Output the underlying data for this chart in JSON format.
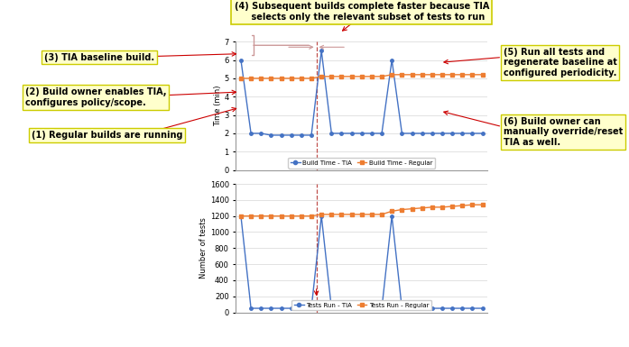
{
  "top_chart": {
    "x": [
      1,
      2,
      3,
      4,
      5,
      6,
      7,
      8,
      9,
      10,
      11,
      12,
      13,
      14,
      15,
      16,
      17,
      18,
      19,
      20,
      21,
      22,
      23,
      24,
      25
    ],
    "tia": [
      6.0,
      2.0,
      2.0,
      1.9,
      1.9,
      1.9,
      1.9,
      1.9,
      6.5,
      2.0,
      2.0,
      2.0,
      2.0,
      2.0,
      2.0,
      6.0,
      2.0,
      2.0,
      2.0,
      2.0,
      2.0,
      2.0,
      2.0,
      2.0,
      2.0
    ],
    "regular": [
      5.0,
      5.0,
      5.0,
      5.0,
      5.0,
      5.0,
      5.0,
      5.0,
      5.1,
      5.1,
      5.1,
      5.1,
      5.1,
      5.1,
      5.1,
      5.2,
      5.2,
      5.2,
      5.2,
      5.2,
      5.2,
      5.2,
      5.2,
      5.2,
      5.2
    ],
    "ylabel": "Time (min)",
    "ylim": [
      0,
      7
    ],
    "yticks": [
      0,
      1,
      2,
      3,
      4,
      5,
      6,
      7
    ],
    "legend_tia": "Build Time - TIA",
    "legend_regular": "Build Time - Regular",
    "vline_x": 8.5
  },
  "bottom_chart": {
    "x": [
      1,
      2,
      3,
      4,
      5,
      6,
      7,
      8,
      9,
      10,
      11,
      12,
      13,
      14,
      15,
      16,
      17,
      18,
      19,
      20,
      21,
      22,
      23,
      24,
      25
    ],
    "tia": [
      1200,
      50,
      50,
      50,
      50,
      50,
      50,
      50,
      1200,
      50,
      50,
      50,
      50,
      50,
      50,
      1200,
      50,
      50,
      50,
      50,
      50,
      50,
      50,
      50,
      50
    ],
    "regular": [
      1200,
      1200,
      1200,
      1200,
      1200,
      1200,
      1200,
      1200,
      1220,
      1220,
      1220,
      1220,
      1220,
      1220,
      1220,
      1260,
      1280,
      1290,
      1300,
      1310,
      1310,
      1320,
      1330,
      1340,
      1340
    ],
    "ylabel": "Number of tests",
    "ylim": [
      0,
      1600
    ],
    "yticks": [
      0,
      200,
      400,
      600,
      800,
      1000,
      1200,
      1400,
      1600
    ],
    "legend_tia": "Tests Run - TIA",
    "legend_regular": "Tests Run - Regular",
    "vline_x": 8.5
  },
  "color_tia": "#4472C4",
  "color_regular": "#ED7D31",
  "vline_color": "#C0504D",
  "ann_bg": "#FFFFCC",
  "ann_border": "#CCCC00",
  "ann_fontsize": 7.0,
  "ann_4_text": "(4) Subsequent builds complete faster because TIA\n    selects only the relevant subset of tests to run",
  "ann_3_text": "(3) TIA baseline build.",
  "ann_2_text": "(2) Build owner enables TIA,\nconfigures policy/scope.",
  "ann_1_text": "(1) Regular builds are running",
  "ann_5_text": "(5) Run all tests and\nregenerate baseline at\nconfigured periodicity.",
  "ann_6_text": "(6) Build owner can\nmanually override/reset\nTIA as well."
}
